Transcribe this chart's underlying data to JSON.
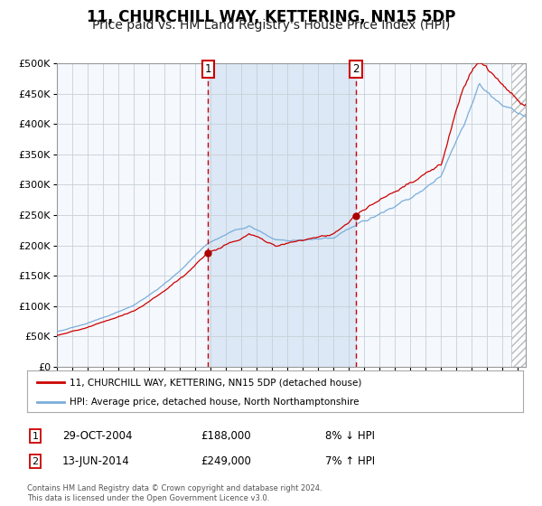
{
  "title": "11, CHURCHILL WAY, KETTERING, NN15 5DP",
  "subtitle": "Price paid vs. HM Land Registry's House Price Index (HPI)",
  "title_fontsize": 12,
  "subtitle_fontsize": 10,
  "ylim": [
    0,
    500000
  ],
  "yticks": [
    0,
    50000,
    100000,
    150000,
    200000,
    250000,
    300000,
    350000,
    400000,
    450000,
    500000
  ],
  "ytick_labels": [
    "£0",
    "£50K",
    "£100K",
    "£150K",
    "£200K",
    "£250K",
    "£300K",
    "£350K",
    "£400K",
    "£450K",
    "£500K"
  ],
  "xlim_start": 1995.0,
  "xlim_end": 2025.5,
  "background_color": "#ffffff",
  "plot_bg_color": "#f5f8fc",
  "shaded_color": "#dce8f5",
  "grid_color": "#c8d0d8",
  "sale1_x": 2004.83,
  "sale1_y": 188000,
  "sale1_label": "1",
  "sale2_x": 2014.44,
  "sale2_y": 249000,
  "sale2_label": "2",
  "vline_color": "#cc0000",
  "dot_color": "#aa0000",
  "line1_color": "#cc0000",
  "line2_color": "#7aaddb",
  "legend1_label": "11, CHURCHILL WAY, KETTERING, NN15 5DP (detached house)",
  "legend2_label": "HPI: Average price, detached house, North Northamptonshire",
  "table_row1": [
    "1",
    "29-OCT-2004",
    "£188,000",
    "8% ↓ HPI"
  ],
  "table_row2": [
    "2",
    "13-JUN-2014",
    "£249,000",
    "7% ↑ HPI"
  ],
  "footer": "Contains HM Land Registry data © Crown copyright and database right 2024.\nThis data is licensed under the Open Government Licence v3.0.",
  "hatched_region_start": 2024.58,
  "hatched_region_end": 2025.5
}
